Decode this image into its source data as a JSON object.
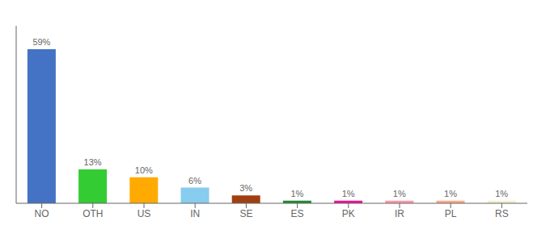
{
  "chart_data": {
    "type": "bar",
    "categories": [
      "NO",
      "OTH",
      "US",
      "IN",
      "SE",
      "ES",
      "PK",
      "IR",
      "PL",
      "RS"
    ],
    "values": [
      59,
      13,
      10,
      6,
      3,
      1,
      1,
      1,
      1,
      1
    ],
    "value_labels": [
      "59%",
      "13%",
      "10%",
      "6%",
      "3%",
      "1%",
      "1%",
      "1%",
      "1%",
      "1%"
    ],
    "colors": [
      "#4472c4",
      "#33cc33",
      "#ffaa00",
      "#88ccee",
      "#a04010",
      "#228833",
      "#ee1199",
      "#ff99aa",
      "#ffaa88",
      "#f5f0d0"
    ],
    "ylim": [
      0,
      68
    ],
    "data_labels": true,
    "tick_labels": "x",
    "grid": false
  }
}
